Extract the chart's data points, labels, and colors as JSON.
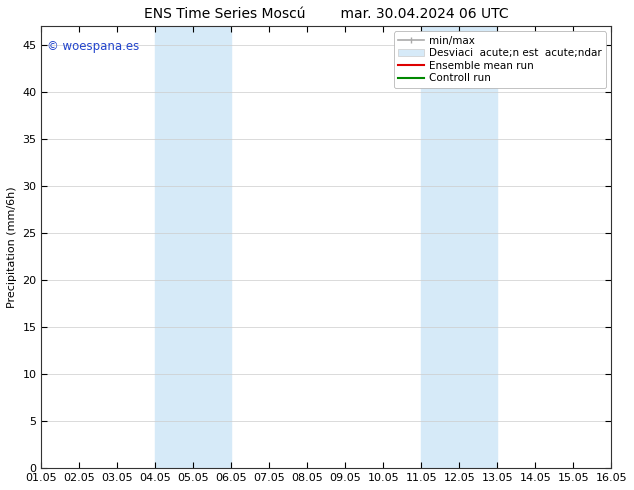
{
  "title_left": "ENS Time Series Moscú",
  "title_right": "mar. 30.04.2024 06 UTC",
  "ylabel": "Precipitation (mm/6h)",
  "ylim": [
    0,
    47
  ],
  "yticks": [
    0,
    5,
    10,
    15,
    20,
    25,
    30,
    35,
    40,
    45
  ],
  "xlim": [
    0,
    15
  ],
  "xtick_labels": [
    "01.05",
    "02.05",
    "03.05",
    "04.05",
    "05.05",
    "06.05",
    "07.05",
    "08.05",
    "09.05",
    "10.05",
    "11.05",
    "12.05",
    "13.05",
    "14.05",
    "15.05",
    "16.05"
  ],
  "shaded_regions": [
    {
      "xmin": 3.0,
      "xmax": 5.0,
      "color": "#d6eaf8"
    },
    {
      "xmin": 10.0,
      "xmax": 12.0,
      "color": "#d6eaf8"
    }
  ],
  "legend_line1_label": "min/max",
  "legend_line2_label": "Desviaci  acute;n est  acute;ndar",
  "legend_line3_label": "Ensemble mean run",
  "legend_line4_label": "Controll run",
  "legend_line1_color": "#aaaaaa",
  "legend_line2_color": "#cccccc",
  "legend_line3_color": "#dd0000",
  "legend_line4_color": "#008800",
  "watermark": "© woespana.es",
  "watermark_color": "#2244cc",
  "background_color": "#ffffff",
  "grid_color": "#cccccc",
  "title_fontsize": 10,
  "axis_fontsize": 8,
  "tick_fontsize": 8,
  "legend_fontsize": 7.5
}
